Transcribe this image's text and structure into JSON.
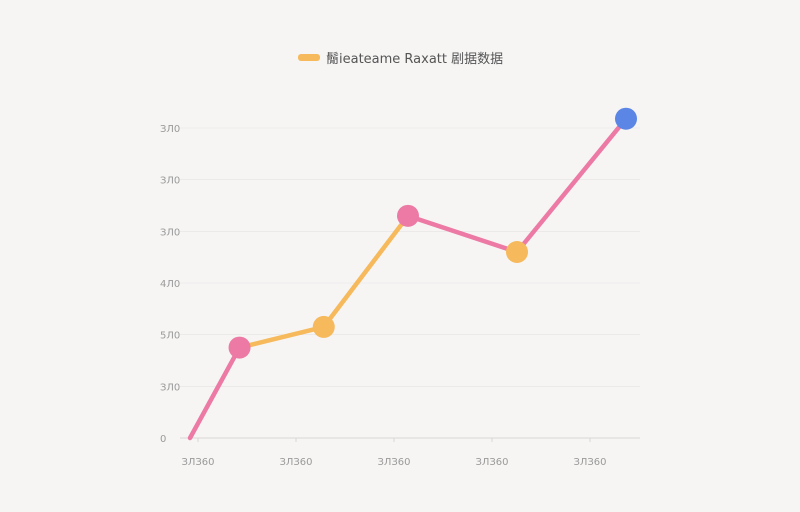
{
  "chart_data": {
    "type": "line",
    "legend": {
      "label": "鬜ieateame Raxatt 剧据数据",
      "color": "#f6b95c",
      "placement": "top-center"
    },
    "x_tick_labels": [
      "ЗЛЗ60",
      "ЗЛЗ60",
      "ЗЛЗ60",
      "ЗЛЗ60",
      "ЗЛЗ60"
    ],
    "y_tick_labels": [
      "0",
      "ЗЛ0",
      "5Л0",
      "4Л0",
      "ЗЛ0",
      "ЗЛ0",
      "ЗЛ0"
    ],
    "ylim": [
      0,
      6
    ],
    "grid": true,
    "series": [
      {
        "x": [
          0,
          0.5,
          1.35,
          2.2,
          3.3,
          4.4
        ],
        "y": [
          0,
          1.75,
          2.15,
          4.3,
          3.6,
          6.6
        ]
      }
    ],
    "segment_colors": [
      "#ec7aa4",
      "#f6b95c",
      "#f6b95c",
      "#ec7aa4",
      "#ec7aa4"
    ],
    "marker_colors": [
      "#ec7aa4",
      "#f6b95c",
      "#ec7aa4",
      "#f6b95c",
      "#5b86e5"
    ],
    "grid_color": "#e6e4e2",
    "axis_color": "#d8d6d4"
  }
}
